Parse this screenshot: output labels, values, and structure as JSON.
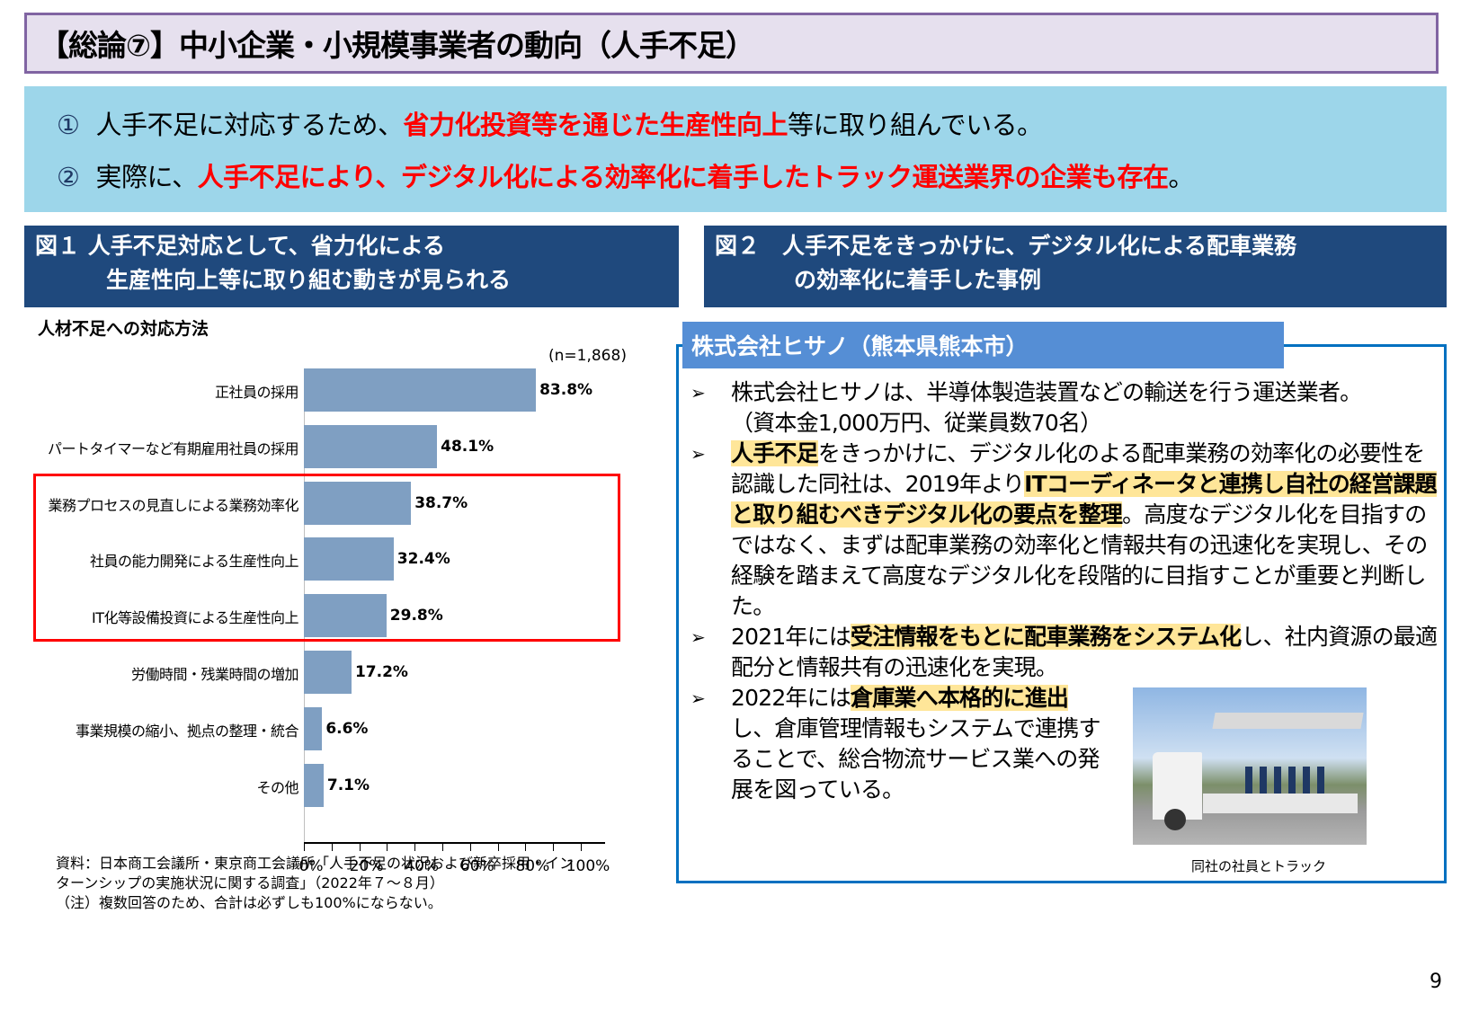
{
  "title": "【総論⑦】中小企業・小規模事業者の動向（人手不足）",
  "summary": {
    "line1": {
      "num": "①",
      "pre": "人手不足に対応するため、",
      "highlight": "省力化投資等を通じた生産性向上",
      "post": "等に取り組んでいる。"
    },
    "line2": {
      "num": "②",
      "pre": "実際に、",
      "highlight": "人手不足により、デジタル化による効率化に着手したトラック運送業界の企業も存在",
      "post": "。"
    }
  },
  "fig1": {
    "header_line1": "図１ 人手不足対応として、省力化による",
    "header_line2": "生産性向上等に取り組む動きが見られる",
    "subtitle": "人材不足への対応方法",
    "n_label": "(n=1,868)",
    "source_line1": "資料：日本商工会議所・東京商工会議所「人手不足の状況および新卒採用・イン",
    "source_line2": "ターンシップの実施状況に関する調査」（2022年７～８月）",
    "source_line3": "（注）複数回答のため、合計は必ずしも100%にならない。"
  },
  "chart_data": {
    "type": "bar",
    "orientation": "horizontal",
    "title": "人材不足への対応方法",
    "note": "(n=1,868)",
    "categories": [
      "正社員の採用",
      "パートタイマーなど有期雇用社員の採用",
      "業務プロセスの見直しによる業務効率化",
      "社員の能力開発による生産性向上",
      "IT化等設備投資による生産性向上",
      "労働時間・残業時間の増加",
      "事業規模の縮小、拠点の整理・統合",
      "その他"
    ],
    "values": [
      83.8,
      48.1,
      38.7,
      32.4,
      29.8,
      17.2,
      6.6,
      7.1
    ],
    "value_labels": [
      "83.8%",
      "48.1%",
      "38.7%",
      "32.4%",
      "29.8%",
      "17.2%",
      "6.6%",
      "7.1%"
    ],
    "xlabel": "",
    "ylabel": "",
    "xlim": [
      0,
      100
    ],
    "x_ticks": [
      "0%",
      "20%",
      "40%",
      "60%",
      "80%",
      "100%"
    ],
    "highlighted_categories": [
      2,
      3,
      4
    ],
    "bar_color": "#7f9fc2",
    "highlight_frame_color": "#ff0000",
    "grid": false,
    "legend": null
  },
  "fig2": {
    "header_line1": "図２　人手不足をきっかけに、デジタル化による配車業務",
    "header_line2": "の効率化に着手した事例",
    "case_title": "株式会社ヒサノ（熊本県熊本市）",
    "bullet_icon": "arrow-bullet-icon",
    "bullets": [
      {
        "text1": "株式会社ヒサノは、半導体製造装置などの輸送を行う運送業者。",
        "text2": "（資本金1,000万円、従業員数70名）"
      },
      {
        "mark1": "人手不足",
        "text1": "をきっかけに、デジタル化のよる配車業務の効率化の必要性を認識した同社は、2019年より",
        "mark2": "ITコーディネータと連携し自社の経営課題と取り組むべきデジタル化の要点を整理",
        "text2": "。高度なデジタル化を目指すのではなく、まずは配車業務の効率化と情報共有の迅速化を実現し、その経験を踏まえて高度なデジタル化を段階的に目指すことが重要と判断した。"
      },
      {
        "text1": "2021年には",
        "mark1": "受注情報をもとに配車業務をシステム化",
        "text2": "し、社内資源の最適配分と情報共有の迅速化を実現。"
      },
      {
        "text1": "2022年には",
        "mark1": "倉庫業へ本格的に進出",
        "text2": "し、倉庫管理情報もシステムで連携することで、総合物流サービス業への発展を図っている。"
      }
    ],
    "photo_caption": "同社の社員とトラック"
  },
  "colors": {
    "title_bg": "#e6e0ee",
    "title_border": "#8064a2",
    "summary_bg": "#9dd6ea",
    "highlight_red": "#ff0000",
    "fig_header_bg": "#1f497d",
    "case_title_bg": "#558ed5",
    "case_border": "#0070c0",
    "marker_yellow": "#ffe699"
  },
  "page_number": "9"
}
